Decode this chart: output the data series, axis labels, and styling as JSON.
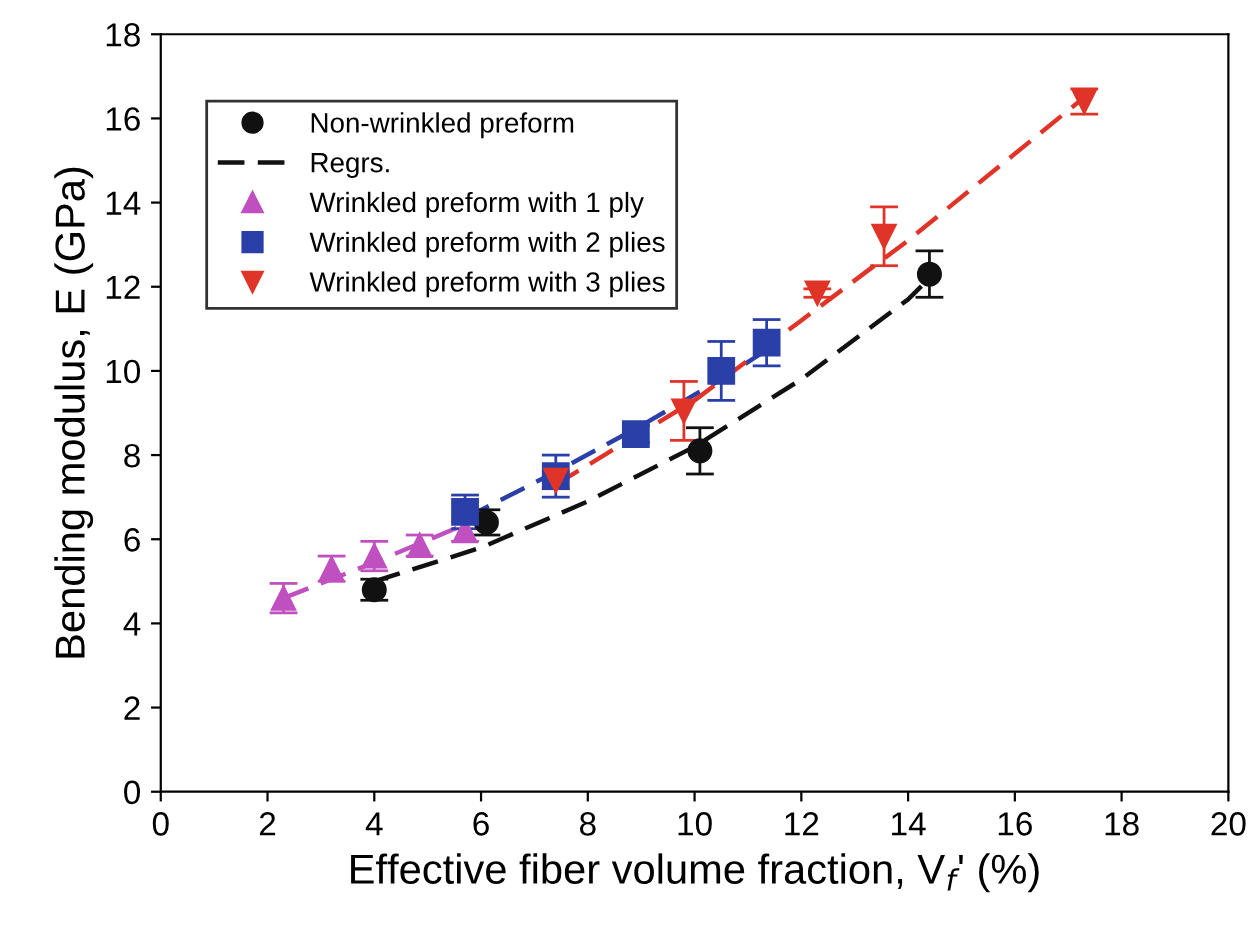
{
  "chart_data": {
    "type": "scatter",
    "xlabel": "Effective fiber volume fraction, V$_{f}$' (%)",
    "ylabel": "Bending modulus, E (GPa)",
    "xlim": [
      0,
      20
    ],
    "ylim": [
      0,
      18
    ],
    "xticks": [
      0,
      2,
      4,
      6,
      8,
      10,
      12,
      14,
      16,
      18,
      20
    ],
    "yticks": [
      0,
      2,
      4,
      6,
      8,
      10,
      12,
      14,
      16,
      18
    ],
    "grid": false,
    "legend": "top left",
    "series": [
      {
        "name": "Non-wrinkled preform",
        "marker": "circle",
        "color": "#111111",
        "x": [
          4.0,
          6.1,
          10.1,
          14.4
        ],
        "values": [
          4.8,
          6.4,
          8.1,
          12.3
        ],
        "errors": [
          0.25,
          0.3,
          0.55,
          0.55
        ]
      },
      {
        "name": "Regrs.",
        "type": "line",
        "line_style": "dashed",
        "marker": "none",
        "color": "#111111",
        "x": [
          4.0,
          6.0,
          8.0,
          10.0,
          12.0,
          14.0,
          14.4
        ],
        "values": [
          5.0,
          5.8,
          6.9,
          8.2,
          9.8,
          11.7,
          12.2
        ]
      },
      {
        "name": "Wrinkled preform with 1 ply",
        "marker": "triangle",
        "color": "#c050c0",
        "x": [
          2.3,
          3.2,
          4.0,
          4.85,
          5.7
        ],
        "values": [
          4.6,
          5.3,
          5.6,
          5.85,
          6.2
        ],
        "errors": [
          0.35,
          0.3,
          0.35,
          0.25,
          0.25
        ]
      },
      {
        "name": "Wrinkled preform with 2 plies",
        "marker": "square",
        "color": "#2a3fa8",
        "x": [
          5.7,
          7.4,
          8.9,
          10.5,
          11.35
        ],
        "values": [
          6.65,
          7.5,
          8.5,
          10.0,
          10.67
        ],
        "errors": [
          0.4,
          0.5,
          0.2,
          0.7,
          0.55
        ]
      },
      {
        "name": "Wrinkled preform with 3 plies",
        "marker": "triangle_down",
        "color": "#e03428",
        "x": [
          7.4,
          9.8,
          12.3,
          13.55,
          17.3
        ],
        "values": [
          7.4,
          9.05,
          11.85,
          13.2,
          16.4
        ],
        "errors": [
          0.2,
          0.7,
          0.1,
          0.7,
          0.3
        ]
      },
      {
        "type": "line",
        "line_style": "dashed",
        "marker": "none",
        "color": "#c050c0",
        "x": [
          2.3,
          4.0,
          5.7
        ],
        "values": [
          4.6,
          5.45,
          6.35
        ]
      },
      {
        "type": "line",
        "line_style": "dashed",
        "marker": "none",
        "color": "#2a3fa8",
        "x": [
          5.7,
          7.4,
          9.0,
          10.5,
          11.35
        ],
        "values": [
          6.5,
          7.6,
          8.7,
          9.8,
          10.5
        ]
      },
      {
        "type": "line",
        "line_style": "dashed",
        "marker": "none",
        "color": "#e03428",
        "x": [
          7.4,
          10.0,
          12.0,
          14.0,
          17.3
        ],
        "values": [
          7.3,
          9.3,
          11.2,
          13.1,
          16.5
        ]
      }
    ]
  }
}
